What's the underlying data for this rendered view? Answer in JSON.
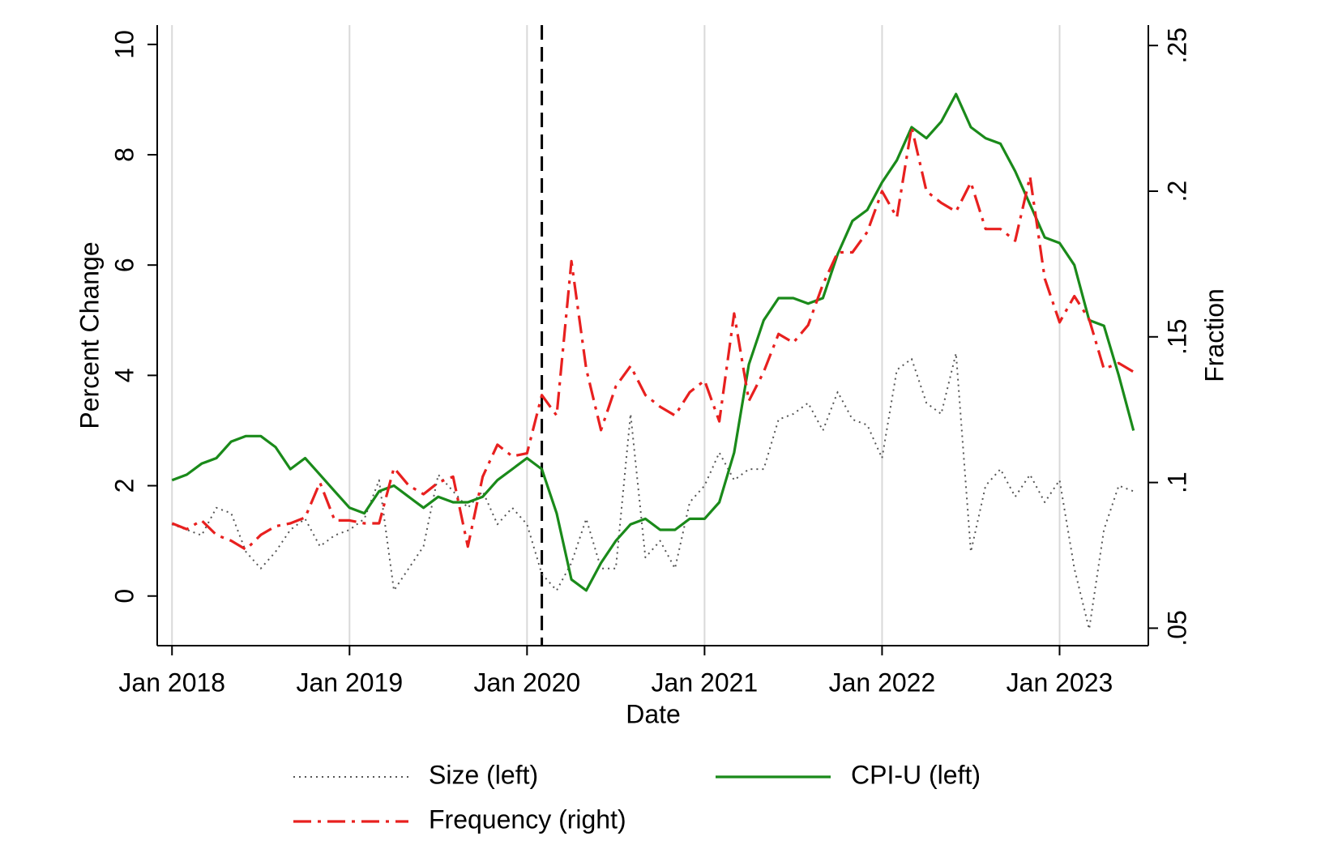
{
  "chart_data": {
    "type": "line",
    "x_label": "Date",
    "y_label": "Percent Change",
    "y2_label": "Fraction",
    "x": [
      "2018-01",
      "2018-02",
      "2018-03",
      "2018-04",
      "2018-05",
      "2018-06",
      "2018-07",
      "2018-08",
      "2018-09",
      "2018-10",
      "2018-11",
      "2018-12",
      "2019-01",
      "2019-02",
      "2019-03",
      "2019-04",
      "2019-05",
      "2019-06",
      "2019-07",
      "2019-08",
      "2019-09",
      "2019-10",
      "2019-11",
      "2019-12",
      "2020-01",
      "2020-02",
      "2020-03",
      "2020-04",
      "2020-05",
      "2020-06",
      "2020-07",
      "2020-08",
      "2020-09",
      "2020-10",
      "2020-11",
      "2020-12",
      "2021-01",
      "2021-02",
      "2021-03",
      "2021-04",
      "2021-05",
      "2021-06",
      "2021-07",
      "2021-08",
      "2021-09",
      "2021-10",
      "2021-11",
      "2021-12",
      "2022-01",
      "2022-02",
      "2022-03",
      "2022-04",
      "2022-05",
      "2022-06",
      "2022-07",
      "2022-08",
      "2022-09",
      "2022-10",
      "2022-11",
      "2022-12",
      "2023-01",
      "2023-02",
      "2023-03",
      "2023-04",
      "2023-05",
      "2023-06"
    ],
    "xlim": [
      "2017-12",
      "2023-07"
    ],
    "xticks": [
      {
        "value": "2018-01",
        "label": "Jan 2018"
      },
      {
        "value": "2019-01",
        "label": "Jan 2019"
      },
      {
        "value": "2020-01",
        "label": "Jan 2020"
      },
      {
        "value": "2021-01",
        "label": "Jan 2021"
      },
      {
        "value": "2022-01",
        "label": "Jan 2022"
      },
      {
        "value": "2023-01",
        "label": "Jan 2023"
      }
    ],
    "ylim": [
      -0.9,
      10.35
    ],
    "yticks": [
      0,
      2,
      4,
      6,
      8,
      10
    ],
    "y2lim": [
      0.044,
      0.257
    ],
    "y2ticks": [
      {
        "value": 0.05,
        "label": ".05"
      },
      {
        "value": 0.1,
        "label": ".1"
      },
      {
        "value": 0.15,
        "label": ".15"
      },
      {
        "value": 0.2,
        "label": ".2"
      },
      {
        "value": 0.25,
        "label": ".25"
      }
    ],
    "grid": "x",
    "vline": "2020-02",
    "series": [
      {
        "name": "Size (left)",
        "color": "#555555",
        "linestyle": "dotted",
        "axis": "y",
        "values": [
          1.3,
          1.2,
          1.1,
          1.6,
          1.5,
          0.8,
          0.5,
          0.8,
          1.2,
          1.4,
          0.9,
          1.1,
          1.2,
          1.4,
          2.1,
          0.1,
          0.5,
          0.9,
          2.2,
          1.9,
          1.6,
          1.9,
          1.3,
          1.6,
          1.3,
          0.4,
          0.1,
          0.6,
          1.4,
          0.5,
          0.5,
          3.3,
          0.7,
          1.0,
          0.5,
          1.7,
          2.0,
          2.6,
          2.1,
          2.3,
          2.3,
          3.2,
          3.3,
          3.5,
          3.0,
          3.7,
          3.2,
          3.1,
          2.5,
          4.1,
          4.3,
          3.5,
          3.3,
          4.4,
          0.8,
          2.0,
          2.3,
          1.8,
          2.2,
          1.7,
          2.1,
          0.5,
          -0.6,
          1.2,
          2.0,
          1.9
        ]
      },
      {
        "name": "CPI-U (left)",
        "color": "#1a8a1a",
        "linestyle": "solid",
        "axis": "y",
        "values": [
          2.1,
          2.2,
          2.4,
          2.5,
          2.8,
          2.9,
          2.9,
          2.7,
          2.3,
          2.5,
          2.2,
          1.9,
          1.6,
          1.5,
          1.9,
          2.0,
          1.8,
          1.6,
          1.8,
          1.7,
          1.7,
          1.8,
          2.1,
          2.3,
          2.5,
          2.3,
          1.5,
          0.3,
          0.1,
          0.6,
          1.0,
          1.3,
          1.4,
          1.2,
          1.2,
          1.4,
          1.4,
          1.7,
          2.6,
          4.2,
          5.0,
          5.4,
          5.4,
          5.3,
          5.4,
          6.2,
          6.8,
          7.0,
          7.5,
          7.9,
          8.5,
          8.3,
          8.6,
          9.1,
          8.5,
          8.3,
          8.2,
          7.7,
          7.1,
          6.5,
          6.4,
          6.0,
          5.0,
          4.9,
          4.0,
          3.0
        ]
      },
      {
        "name": "Frequency (right)",
        "color": "#e8201f",
        "linestyle": "dashdot",
        "axis": "y2",
        "values": [
          0.086,
          0.084,
          0.087,
          0.082,
          0.08,
          0.077,
          0.082,
          0.085,
          0.086,
          0.088,
          0.1,
          0.087,
          0.087,
          0.086,
          0.086,
          0.105,
          0.099,
          0.096,
          0.1,
          0.102,
          0.078,
          0.102,
          0.113,
          0.109,
          0.11,
          0.13,
          0.123,
          0.176,
          0.139,
          0.118,
          0.133,
          0.14,
          0.13,
          0.126,
          0.123,
          0.131,
          0.135,
          0.121,
          0.158,
          0.128,
          0.138,
          0.151,
          0.148,
          0.154,
          0.168,
          0.179,
          0.179,
          0.186,
          0.2,
          0.191,
          0.222,
          0.2,
          0.196,
          0.193,
          0.203,
          0.187,
          0.187,
          0.183,
          0.205,
          0.17,
          0.155,
          0.164,
          0.156,
          0.139,
          0.141,
          0.138
        ]
      }
    ]
  }
}
